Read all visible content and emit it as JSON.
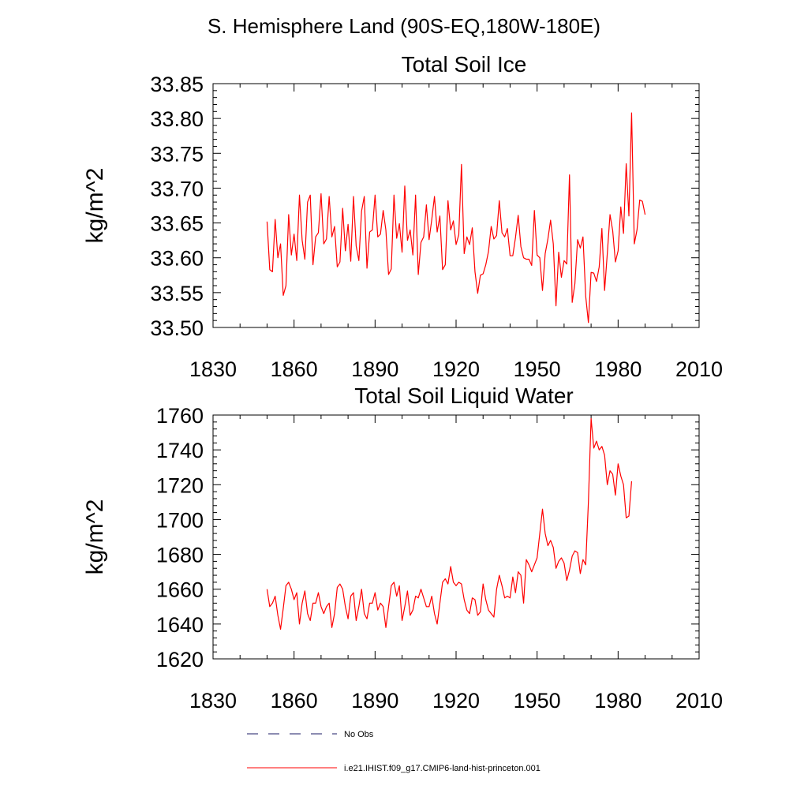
{
  "page_title": "S. Hemisphere Land (90S-EQ,180W-180E)",
  "colors": {
    "model": "#ff0000",
    "obs": "#1a1a66",
    "axis": "#000000"
  },
  "legend": [
    {
      "label": "No Obs",
      "style": "dashed",
      "color": "#1a1a66"
    },
    {
      "label": "i.e21.IHIST.f09_g17.CMIP6-land-hist-princeton.001",
      "style": "solid",
      "color": "#ff0000"
    }
  ],
  "chart_data": [
    {
      "type": "line",
      "title": "Total Soil Ice",
      "ylabel": "kg/m^2",
      "xlabel": "",
      "xlim": [
        1830,
        2010
      ],
      "ylim": [
        33.5,
        33.85
      ],
      "xticks": [
        1830,
        1860,
        1890,
        1920,
        1950,
        1980,
        2010
      ],
      "yticks": [
        "33.50",
        "33.55",
        "33.60",
        "33.65",
        "33.70",
        "33.75",
        "33.80",
        "33.85"
      ],
      "x_start": 1850,
      "series": [
        {
          "values": [
            33.652,
            33.583,
            33.58,
            33.655,
            33.6,
            33.62,
            33.546,
            33.56,
            33.662,
            33.604,
            33.634,
            33.596,
            33.69,
            33.625,
            33.598,
            33.68,
            33.69,
            33.59,
            33.63,
            33.636,
            33.692,
            33.62,
            33.627,
            33.688,
            33.63,
            33.645,
            33.587,
            33.594,
            33.671,
            33.61,
            33.648,
            33.595,
            33.688,
            33.617,
            33.596,
            33.667,
            33.688,
            33.585,
            33.637,
            33.64,
            33.69,
            33.63,
            33.634,
            33.668,
            33.64,
            33.576,
            33.584,
            33.69,
            33.628,
            33.649,
            33.608,
            33.703,
            33.625,
            33.64,
            33.604,
            33.69,
            33.576,
            33.622,
            33.63,
            33.676,
            33.626,
            33.655,
            33.688,
            33.637,
            33.66,
            33.583,
            33.59,
            33.682,
            33.64,
            33.653,
            33.619,
            33.633,
            33.734,
            33.606,
            33.63,
            33.619,
            33.643,
            33.58,
            33.549,
            33.575,
            33.577,
            33.59,
            33.609,
            33.645,
            33.627,
            33.632,
            33.682,
            33.636,
            33.63,
            33.642,
            33.603,
            33.603,
            33.629,
            33.661,
            33.616,
            33.6,
            33.598,
            33.598,
            33.589,
            33.668,
            33.604,
            33.6,
            33.553,
            33.606,
            33.627,
            33.654,
            33.62,
            33.531,
            33.608,
            33.572,
            33.596,
            33.591,
            33.719,
            33.536,
            33.563,
            33.626,
            33.614,
            33.63,
            33.545,
            33.507,
            33.579,
            33.578,
            33.566,
            33.587,
            33.642,
            33.553,
            33.606,
            33.662,
            33.639,
            33.594,
            33.61,
            33.673,
            33.635,
            33.735,
            33.66,
            33.808,
            33.62,
            33.64,
            33.683,
            33.681,
            33.662
          ]
        }
      ]
    },
    {
      "type": "line",
      "title": "Total Soil Liquid Water",
      "ylabel": "kg/m^2",
      "xlabel": "",
      "xlim": [
        1830,
        2010
      ],
      "ylim": [
        1620,
        1760
      ],
      "xticks": [
        1830,
        1860,
        1890,
        1920,
        1950,
        1980,
        2010
      ],
      "yticks": [
        "1620",
        "1640",
        "1660",
        "1680",
        "1700",
        "1720",
        "1740",
        "1760"
      ],
      "x_start": 1850,
      "series": [
        {
          "values": [
            1660,
            1650,
            1652,
            1656,
            1645,
            1637,
            1649,
            1662,
            1664,
            1660,
            1654,
            1658,
            1640,
            1652,
            1659,
            1646,
            1642,
            1652,
            1652,
            1658,
            1650,
            1646,
            1650,
            1652,
            1638,
            1646,
            1661,
            1663,
            1660,
            1650,
            1643,
            1656,
            1658,
            1642,
            1650,
            1660,
            1646,
            1643,
            1652,
            1652,
            1658,
            1648,
            1652,
            1650,
            1638,
            1650,
            1662,
            1664,
            1656,
            1662,
            1642,
            1650,
            1659,
            1645,
            1648,
            1656,
            1655,
            1660,
            1655,
            1650,
            1650,
            1656,
            1646,
            1640,
            1652,
            1664,
            1666,
            1663,
            1673,
            1664,
            1662,
            1664,
            1663,
            1654,
            1648,
            1646,
            1655,
            1654,
            1645,
            1647,
            1663,
            1654,
            1648,
            1646,
            1644,
            1660,
            1668,
            1662,
            1655,
            1656,
            1655,
            1667,
            1658,
            1670,
            1668,
            1652,
            1677,
            1674,
            1670,
            1674,
            1678,
            1692,
            1706,
            1692,
            1685,
            1688,
            1684,
            1672,
            1676,
            1678,
            1675,
            1665,
            1671,
            1679,
            1682,
            1681,
            1669,
            1677,
            1674,
            1710,
            1758,
            1741,
            1745,
            1740,
            1742,
            1737,
            1720,
            1728,
            1726,
            1714,
            1732,
            1725,
            1720,
            1701,
            1702,
            1722
          ]
        }
      ]
    }
  ]
}
